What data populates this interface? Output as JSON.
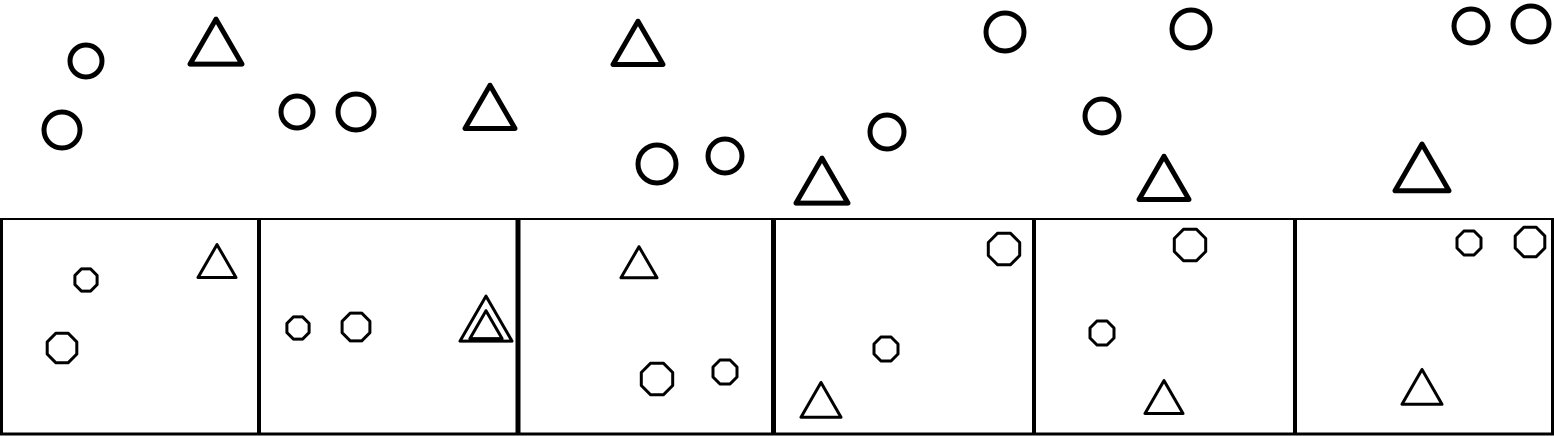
{
  "colors": {
    "background": "#ffffff",
    "stroke": "#000000"
  },
  "top_row": {
    "shapes": [
      {
        "name": "circle-icon",
        "kind": "circle"
      },
      {
        "name": "circle-icon",
        "kind": "circle"
      },
      {
        "name": "triangle-icon",
        "kind": "triangle"
      },
      {
        "name": "circle-icon",
        "kind": "circle"
      },
      {
        "name": "circle-icon",
        "kind": "circle"
      },
      {
        "name": "triangle-icon",
        "kind": "triangle"
      },
      {
        "name": "triangle-icon",
        "kind": "triangle"
      },
      {
        "name": "circle-icon",
        "kind": "circle"
      },
      {
        "name": "circle-icon",
        "kind": "circle"
      },
      {
        "name": "circle-icon",
        "kind": "circle"
      },
      {
        "name": "triangle-icon",
        "kind": "triangle"
      },
      {
        "name": "circle-icon",
        "kind": "circle"
      },
      {
        "name": "circle-icon",
        "kind": "circle"
      },
      {
        "name": "circle-icon",
        "kind": "circle"
      },
      {
        "name": "triangle-icon",
        "kind": "triangle"
      },
      {
        "name": "circle-icon",
        "kind": "circle"
      },
      {
        "name": "circle-icon",
        "kind": "circle"
      },
      {
        "name": "triangle-icon",
        "kind": "triangle"
      }
    ]
  },
  "panels": [
    {
      "name": "panel-1",
      "shapes": [
        "circle",
        "circle",
        "triangle"
      ]
    },
    {
      "name": "panel-2",
      "shapes": [
        "circle",
        "circle",
        "double-triangle"
      ]
    },
    {
      "name": "panel-3",
      "shapes": [
        "triangle",
        "circle",
        "circle"
      ]
    },
    {
      "name": "panel-4",
      "shapes": [
        "circle",
        "circle",
        "triangle"
      ]
    },
    {
      "name": "panel-5",
      "shapes": [
        "circle",
        "circle",
        "triangle"
      ]
    },
    {
      "name": "panel-6",
      "shapes": [
        "circle",
        "circle",
        "triangle"
      ]
    }
  ]
}
